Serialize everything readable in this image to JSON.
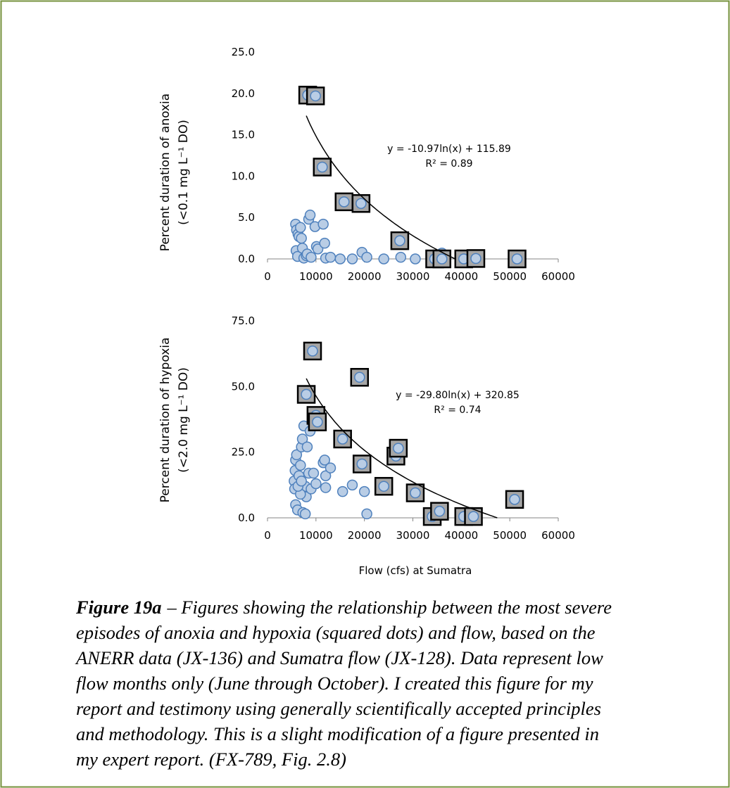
{
  "chart_data": [
    {
      "type": "scatter",
      "ylabel": [
        "Percent duration of anoxia",
        "(<0.1 mg L⁻¹ DO)"
      ],
      "xlim": [
        0,
        60000
      ],
      "xticks": [
        0,
        10000,
        20000,
        30000,
        40000,
        50000,
        60000
      ],
      "ylim": [
        0,
        25
      ],
      "yticks": [
        {
          "value": 0,
          "label": "0.0"
        },
        {
          "value": 5,
          "label": "5.0"
        },
        {
          "value": 10,
          "label": "10.0"
        },
        {
          "value": 15,
          "label": "15.0"
        },
        {
          "value": 20,
          "label": "20.0"
        },
        {
          "value": 25,
          "label": "25.0"
        }
      ],
      "series": [
        {
          "marker": "circle",
          "color": "#b9cde5",
          "edge_color": "#4f81bd",
          "x": [
            5800,
            6000,
            6300,
            6500,
            6800,
            7000,
            5900,
            6200,
            7200,
            7500,
            8000,
            8200,
            8500,
            8800,
            9000,
            9800,
            10100,
            10400,
            11500,
            11800,
            12000,
            13000,
            15000,
            17500,
            19500,
            20500,
            24000,
            27500,
            30500,
            36000
          ],
          "values": [
            4.2,
            3.5,
            3.0,
            2.7,
            3.8,
            2.5,
            1.0,
            0.3,
            1.3,
            0.1,
            0.4,
            0.6,
            4.8,
            5.3,
            0.2,
            3.9,
            1.5,
            1.2,
            4.2,
            1.9,
            0.1,
            0.2,
            0.0,
            0.0,
            0.8,
            0.2,
            0.0,
            0.2,
            0.0,
            0.7
          ]
        },
        {
          "marker": "square",
          "color": "#b9cde5",
          "edge_color": "#000000",
          "x": [
            8300,
            9900,
            11300,
            15800,
            19300,
            27300,
            34500,
            36000,
            40500,
            43000,
            51500
          ],
          "values": [
            19.8,
            19.7,
            11.1,
            6.9,
            6.7,
            2.2,
            0.0,
            0.0,
            0.0,
            0.05,
            0.0
          ]
        }
      ],
      "trendline": {
        "a": -10.97,
        "b": 115.89,
        "x_start": 8000,
        "x_end": 38700,
        "color": "#000000",
        "equation": "y = -10.97ln(x) + 115.89",
        "r_squared_label": "R² = 0.89"
      }
    },
    {
      "type": "scatter",
      "ylabel": [
        "Percent duration of hypoxia",
        "(<2.0 mg L⁻¹ DO)"
      ],
      "xlabel": "Flow (cfs) at Sumatra",
      "xlim": [
        0,
        60000
      ],
      "xticks": [
        0,
        10000,
        20000,
        30000,
        40000,
        50000,
        60000
      ],
      "ylim": [
        0,
        75
      ],
      "yticks": [
        {
          "value": 0,
          "label": "0.0"
        },
        {
          "value": 25,
          "label": "25.0"
        },
        {
          "value": 50,
          "label": "50.0"
        },
        {
          "value": 75,
          "label": "75.0"
        }
      ],
      "series": [
        {
          "marker": "circle",
          "color": "#b9cde5",
          "edge_color": "#4f81bd",
          "x": [
            5500,
            5700,
            5800,
            6000,
            5600,
            5800,
            6200,
            6500,
            6800,
            7000,
            7200,
            7500,
            7800,
            8000,
            8200,
            8500,
            8800,
            7300,
            7800,
            6800,
            9000,
            9500,
            10000,
            11500,
            11800,
            12000,
            12000,
            13000,
            15500,
            17500,
            20000,
            20500,
            6300,
            7000
          ],
          "values": [
            14,
            18,
            22,
            24,
            11,
            5,
            3,
            16,
            20,
            27,
            30,
            35,
            12,
            8,
            27,
            17,
            33,
            2,
            1.5,
            9,
            11,
            17,
            13,
            21,
            22,
            16,
            11.5,
            19,
            10,
            12.5,
            10,
            1.5,
            12,
            14
          ]
        },
        {
          "marker": "square",
          "color": "#b9cde5",
          "edge_color": "#000000",
          "x": [
            9300,
            8000,
            10000,
            10300,
            15500,
            19000,
            19500,
            24000,
            26500,
            27000,
            30500,
            34000,
            35500,
            40500,
            42500,
            51000
          ],
          "values": [
            63.5,
            47,
            39,
            36.5,
            30,
            53.5,
            20.5,
            12,
            23.5,
            26.5,
            9.5,
            0.5,
            2.5,
            0.5,
            0.5,
            7
          ]
        }
      ],
      "trendline": {
        "a": -29.8,
        "b": 320.85,
        "x_start": 8000,
        "x_end": 47400,
        "color": "#000000",
        "equation": "y = -29.80ln(x) + 320.85",
        "r_squared_label": "R² = 0.74"
      }
    }
  ],
  "caption": {
    "label": "Figure 19a",
    "lines": [
      "–  Figures showing the relationship between the most severe",
      "episodes of anoxia and hypoxia (squared dots) and flow, based on the",
      "ANERR data (JX-136) and Sumatra flow (JX-128).  Data represent low",
      "flow months only (June through October).  I created this figure for my",
      "report and testimony using generally scientifically accepted principles",
      "and methodology.  This is a slight modification of a figure presented in",
      "my expert report. (FX-789, Fig. 2.8)"
    ]
  }
}
